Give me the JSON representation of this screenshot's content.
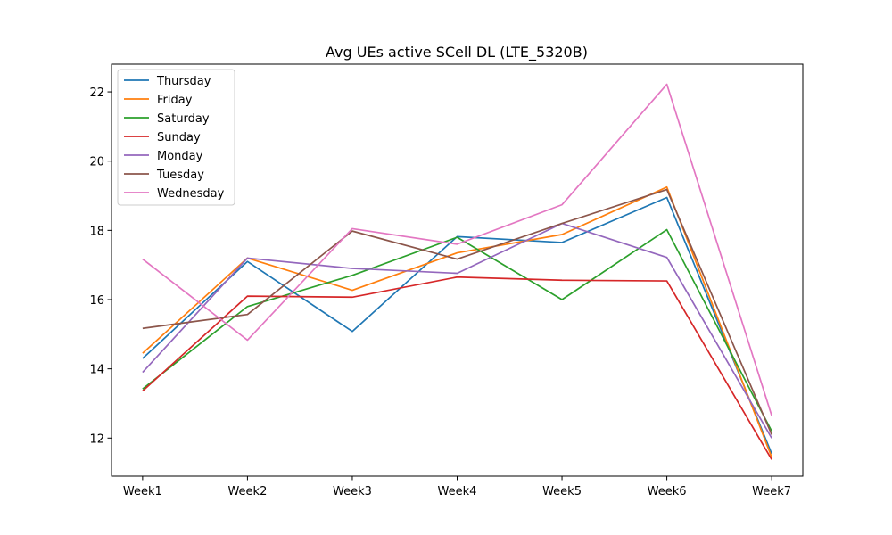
{
  "chart_data": {
    "type": "line",
    "title": "Avg UEs active SCell DL (LTE_5320B)",
    "xlabel": "",
    "ylabel": "",
    "categories": [
      "Week1",
      "Week2",
      "Week3",
      "Week4",
      "Week5",
      "Week6",
      "Week7"
    ],
    "ylim": [
      10.9,
      22.8
    ],
    "yticks": [
      12,
      14,
      16,
      18,
      20,
      22
    ],
    "grid": false,
    "legend_position": "upper-left",
    "series": [
      {
        "name": "Thursday",
        "color": "#1f77b4",
        "values": [
          14.3,
          17.1,
          15.08,
          17.82,
          17.65,
          18.95,
          11.55
        ]
      },
      {
        "name": "Friday",
        "color": "#ff7f0e",
        "values": [
          14.45,
          17.2,
          16.27,
          17.35,
          17.88,
          19.25,
          11.45
        ]
      },
      {
        "name": "Saturday",
        "color": "#2ca02c",
        "values": [
          13.42,
          15.8,
          16.7,
          17.8,
          16.0,
          18.02,
          12.2
        ]
      },
      {
        "name": "Sunday",
        "color": "#d62728",
        "values": [
          13.36,
          16.1,
          16.07,
          16.65,
          16.56,
          16.54,
          11.38
        ]
      },
      {
        "name": "Monday",
        "color": "#9467bd",
        "values": [
          13.9,
          17.2,
          16.9,
          16.76,
          18.2,
          17.22,
          12.0
        ]
      },
      {
        "name": "Tuesday",
        "color": "#8c564b",
        "values": [
          15.17,
          15.57,
          17.98,
          17.17,
          18.2,
          19.18,
          12.1
        ]
      },
      {
        "name": "Wednesday",
        "color": "#e377c2",
        "values": [
          17.17,
          14.83,
          18.05,
          17.6,
          18.74,
          22.22,
          12.65
        ]
      }
    ]
  }
}
